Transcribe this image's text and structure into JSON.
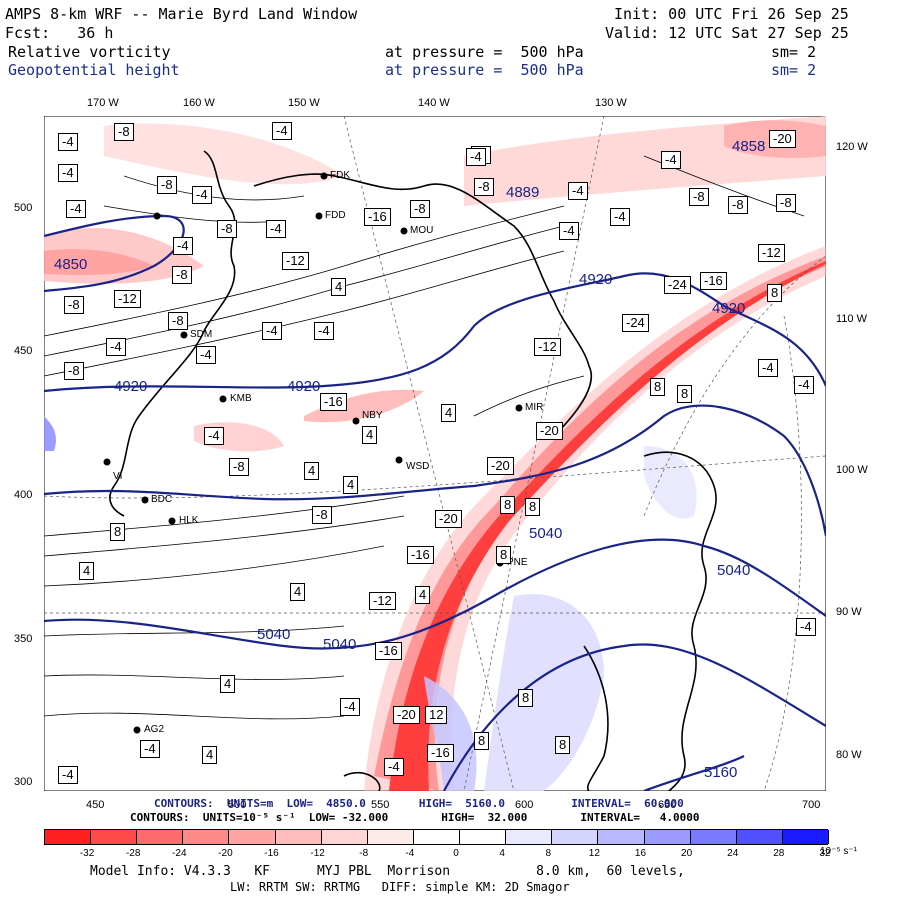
{
  "header": {
    "model_title": "AMPS 8-km WRF -- Marie Byrd Land Window",
    "init": "Init: 00 UTC Fri 26 Sep 25",
    "forecast": "Fcst:   36 h",
    "valid": "Valid: 12 UTC Sat 27 Sep 25",
    "field1_name": "Relative vorticity",
    "field1_level": "at pressure =  500 hPa",
    "field1_sm": "sm= 2",
    "field2_name": "Geopotential height",
    "field2_level": "at pressure =  500 hPa",
    "field2_sm": "sm= 2"
  },
  "axes": {
    "top_lon": [
      "170 W",
      "160 W",
      "150 W",
      "140 W",
      "130 W"
    ],
    "right_lon": [
      "120 W",
      "110 W",
      "100 W",
      "90 W",
      "80 W"
    ],
    "left_y": [
      "500",
      "450",
      "400",
      "350",
      "300"
    ],
    "bottom_x": [
      "450",
      "500",
      "550",
      "600",
      "650",
      "700"
    ]
  },
  "stations": [
    "FDK",
    "FDD",
    "MOU",
    "SDM",
    "KMB",
    "NBY",
    "MIR",
    "WSD",
    "BDC",
    "HLK",
    "PNE",
    "AG2",
    "VI"
  ],
  "contour_labels": {
    "vorticity": [
      "-4",
      "-8",
      "-12",
      "-16",
      "-20",
      "-24",
      "4",
      "8",
      "12"
    ],
    "height": [
      "4850",
      "4858",
      "4889",
      "4920",
      "5040",
      "5160"
    ]
  },
  "footer": {
    "contours_height": "CONTOURS:  UNITS=m  LOW=  4850.0        HIGH=  5160.0          INTERVAL=  60.000",
    "contours_vort": "CONTOURS:  UNITS=10⁻⁵ s⁻¹  LOW= -32.000        HIGH=  32.000        INTERVAL=   4.0000",
    "model_info": "Model Info: V4.3.3   KF      MYJ PBL  Morrison           8.0 km,  60 levels,",
    "model_info2": "LW: RRTM SW: RRTMG   DIFF: simple KM: 2D Smagor",
    "colorbar_unit": "10⁻⁵ s⁻¹"
  },
  "colorbar": {
    "ticks": [
      "-32",
      "-28",
      "-24",
      "-20",
      "-16",
      "-12",
      "-8",
      "-4",
      "0",
      "4",
      "8",
      "12",
      "16",
      "20",
      "24",
      "28",
      "32"
    ],
    "colors": [
      "#ff2020",
      "#ff4a4a",
      "#ff6a6a",
      "#ff8888",
      "#ffa3a3",
      "#ffbcbc",
      "#ffd4d4",
      "#ffeaea",
      "#ffffff",
      "#ffffff",
      "#eaeaff",
      "#d4d4ff",
      "#b8b8ff",
      "#9a9aff",
      "#7a7aff",
      "#5050ff",
      "#1a1aff"
    ]
  }
}
